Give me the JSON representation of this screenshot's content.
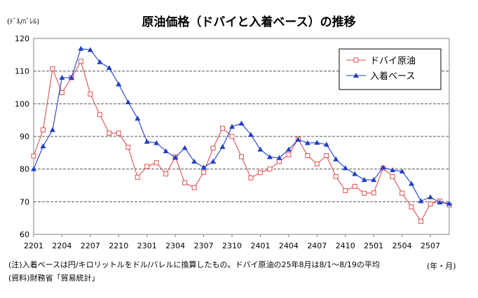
{
  "chart_data": {
    "type": "line",
    "title": "原油価格（ドバイと入着ベース）の推移",
    "y_unit_label": "(ﾄﾞﾙ/ﾊﾞﾚﾙ)",
    "x_unit_label": "(年・月)",
    "ylim": [
      60,
      120
    ],
    "yticks": [
      "60",
      "70",
      "80",
      "90",
      "100",
      "110",
      "120"
    ],
    "x_tick_labels": [
      "2201",
      "2204",
      "2207",
      "2210",
      "2301",
      "2304",
      "2307",
      "2310",
      "2401",
      "2404",
      "2407",
      "2410",
      "2501",
      "2504",
      "2507"
    ],
    "grid": true,
    "legend_position": "top-right",
    "series": [
      {
        "name": "ドバイ原油",
        "color": "#e05050",
        "marker": "square-open",
        "values": [
          84.0,
          92.0,
          110.7,
          103.4,
          108.0,
          113.0,
          103.0,
          96.7,
          91.0,
          91.0,
          86.7,
          77.5,
          80.8,
          81.9,
          78.5,
          83.7,
          75.8,
          74.3,
          79.0,
          86.4,
          92.5,
          90.0,
          83.8,
          77.3,
          78.9,
          80.0,
          82.3,
          84.4,
          89.2,
          84.1,
          81.6,
          84.1,
          77.7,
          73.4,
          74.7,
          72.6,
          72.7,
          80.3,
          77.7,
          72.6,
          68.4,
          64.0,
          69.3,
          70.2,
          69.0
        ]
      },
      {
        "name": "入着ベース",
        "color": "#1f3fc8",
        "marker": "triangle-filled",
        "values": [
          80.0,
          87.0,
          92.0,
          108.0,
          108.0,
          116.9,
          116.5,
          112.8,
          111.0,
          106.0,
          100.5,
          95.5,
          88.4,
          88.0,
          85.5,
          83.5,
          86.5,
          82.3,
          80.5,
          82.3,
          86.8,
          93.0,
          94.0,
          90.5,
          86.0,
          83.7,
          83.4,
          86.0,
          89.0,
          88.0,
          88.1,
          87.5,
          83.0,
          80.3,
          78.5,
          76.7,
          76.7,
          80.5,
          79.7,
          79.3,
          75.5,
          70.2,
          71.4,
          69.8,
          69.4
        ]
      }
    ],
    "notes": [
      "(注)入着ベースは円/キロリットルをドル/バレルに換算したもの。ドバイ原油の25年8月は8/1～8/19の平均",
      "(資料)財務省「貿易統計」"
    ]
  }
}
